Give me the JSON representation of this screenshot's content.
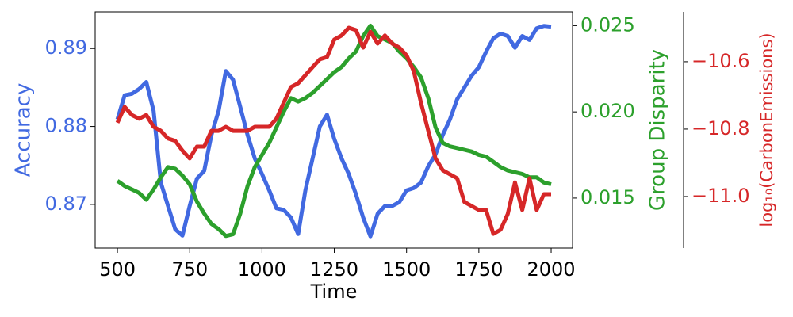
{
  "chart_data": {
    "type": "line",
    "xlabel": "Time",
    "ylabel": "Accuracy",
    "y2label": "Group Disparity",
    "y3label": "log₁₀(CarbonEmissions)",
    "xlim": [
      423,
      2074
    ],
    "xticks": [
      500,
      750,
      1000,
      1250,
      1500,
      1750,
      2000
    ],
    "ylim": [
      0.8644,
      0.8947
    ],
    "yticks": [
      0.87,
      0.88,
      0.89
    ],
    "y2lim": [
      0.0121,
      0.0258
    ],
    "y2ticks": [
      {
        "value": 0.015,
        "label": "0.015"
      },
      {
        "value": 0.02,
        "label": "0.020"
      },
      {
        "value": 0.025,
        "label": "0.025"
      }
    ],
    "y3lim": [
      -11.153,
      -10.452
    ],
    "y3ticks": [
      {
        "value": -11.0,
        "label": "−11.0"
      },
      {
        "value": -10.8,
        "label": "−10.8"
      },
      {
        "value": -10.6,
        "label": "−10.6"
      }
    ],
    "x": [
      500,
      525,
      550,
      575,
      600,
      625,
      650,
      675,
      700,
      725,
      750,
      775,
      800,
      825,
      850,
      875,
      900,
      925,
      950,
      975,
      1000,
      1025,
      1050,
      1075,
      1100,
      1125,
      1150,
      1175,
      1200,
      1225,
      1250,
      1275,
      1300,
      1325,
      1350,
      1375,
      1400,
      1425,
      1450,
      1475,
      1500,
      1525,
      1550,
      1575,
      1600,
      1625,
      1650,
      1675,
      1700,
      1725,
      1750,
      1775,
      1800,
      1825,
      1850,
      1875,
      1900,
      1925,
      1950,
      1975,
      2000
    ],
    "series": [
      {
        "name": "Accuracy",
        "color": "#4169e1",
        "axis": "y",
        "values": [
          0.8809,
          0.884,
          0.8842,
          0.8848,
          0.8857,
          0.882,
          0.8728,
          0.8698,
          0.8668,
          0.866,
          0.8698,
          0.8733,
          0.8743,
          0.8789,
          0.882,
          0.8871,
          0.886,
          0.8825,
          0.8789,
          0.8759,
          0.8739,
          0.8718,
          0.8695,
          0.8693,
          0.8683,
          0.8662,
          0.8718,
          0.8759,
          0.88,
          0.8815,
          0.8784,
          0.8759,
          0.8739,
          0.8713,
          0.8683,
          0.8659,
          0.8688,
          0.8698,
          0.8698,
          0.8703,
          0.8718,
          0.8721,
          0.8728,
          0.8749,
          0.8764,
          0.8789,
          0.8809,
          0.8835,
          0.885,
          0.8865,
          0.8876,
          0.8896,
          0.8913,
          0.8919,
          0.8916,
          0.8901,
          0.8916,
          0.8911,
          0.8926,
          0.8929,
          0.8928
        ]
      },
      {
        "name": "Group Disparity",
        "color": "#2ca02c",
        "axis": "y2",
        "values": [
          0.016,
          0.0157,
          0.0155,
          0.0153,
          0.0149,
          0.0155,
          0.0162,
          0.0168,
          0.0167,
          0.0163,
          0.0158,
          0.0148,
          0.0141,
          0.0135,
          0.0132,
          0.0128,
          0.0129,
          0.0141,
          0.0157,
          0.0168,
          0.0175,
          0.0182,
          0.0191,
          0.02,
          0.0208,
          0.0206,
          0.0208,
          0.0211,
          0.0215,
          0.0219,
          0.0223,
          0.0226,
          0.0231,
          0.0235,
          0.0244,
          0.025,
          0.0244,
          0.0242,
          0.024,
          0.0235,
          0.0231,
          0.0226,
          0.022,
          0.0208,
          0.0191,
          0.0182,
          0.018,
          0.0179,
          0.0178,
          0.0177,
          0.0175,
          0.0174,
          0.0171,
          0.0168,
          0.0166,
          0.0165,
          0.0164,
          0.0162,
          0.0162,
          0.0159,
          0.0158
        ]
      },
      {
        "name": "Carbon Emissions",
        "color": "#d62728",
        "axis": "y3",
        "values": [
          -10.781,
          -10.734,
          -10.758,
          -10.769,
          -10.758,
          -10.793,
          -10.805,
          -10.828,
          -10.835,
          -10.864,
          -10.887,
          -10.852,
          -10.852,
          -10.805,
          -10.805,
          -10.793,
          -10.805,
          -10.805,
          -10.805,
          -10.793,
          -10.793,
          -10.793,
          -10.769,
          -10.722,
          -10.675,
          -10.664,
          -10.64,
          -10.616,
          -10.593,
          -10.586,
          -10.534,
          -10.522,
          -10.499,
          -10.506,
          -10.558,
          -10.511,
          -10.546,
          -10.522,
          -10.546,
          -10.558,
          -10.581,
          -10.628,
          -10.722,
          -10.805,
          -10.887,
          -10.922,
          -10.934,
          -10.946,
          -11.016,
          -11.028,
          -11.04,
          -11.04,
          -11.111,
          -11.099,
          -11.052,
          -10.958,
          -11.04,
          -10.946,
          -11.04,
          -10.993,
          -10.993
        ]
      }
    ]
  }
}
